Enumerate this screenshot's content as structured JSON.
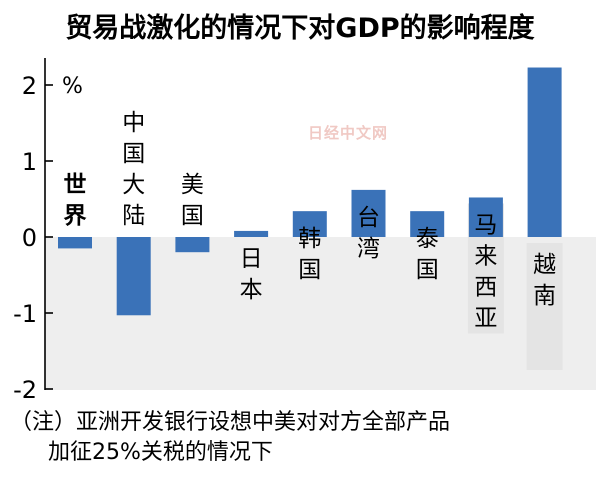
{
  "title": "贸易战激化的情况下对GDP的影响程度",
  "watermark": "日经中文网",
  "note": {
    "line1": "（注）亚洲开发银行设想中美对对方全部产品",
    "line2": "加征25%关税的情况下"
  },
  "colors": {
    "bar": "#3a72b8",
    "negative_band": "#eeeeee",
    "label_panel": "#e4e4e4"
  },
  "chart_data": {
    "type": "bar",
    "title": "贸易战激化的情况下对GDP的影响程度",
    "ylabel": "%",
    "ylim": [
      -2,
      2.2
    ],
    "yticks": [
      "2",
      "1",
      "0",
      "-1",
      "-2"
    ],
    "categories": [
      "世界",
      "中国大陆",
      "美国",
      "日本",
      "韩国",
      "台湾",
      "泰国",
      "马来西亚",
      "越南"
    ],
    "values": [
      -0.15,
      -1.03,
      -0.2,
      0.08,
      0.34,
      0.62,
      0.34,
      0.52,
      2.23
    ]
  }
}
